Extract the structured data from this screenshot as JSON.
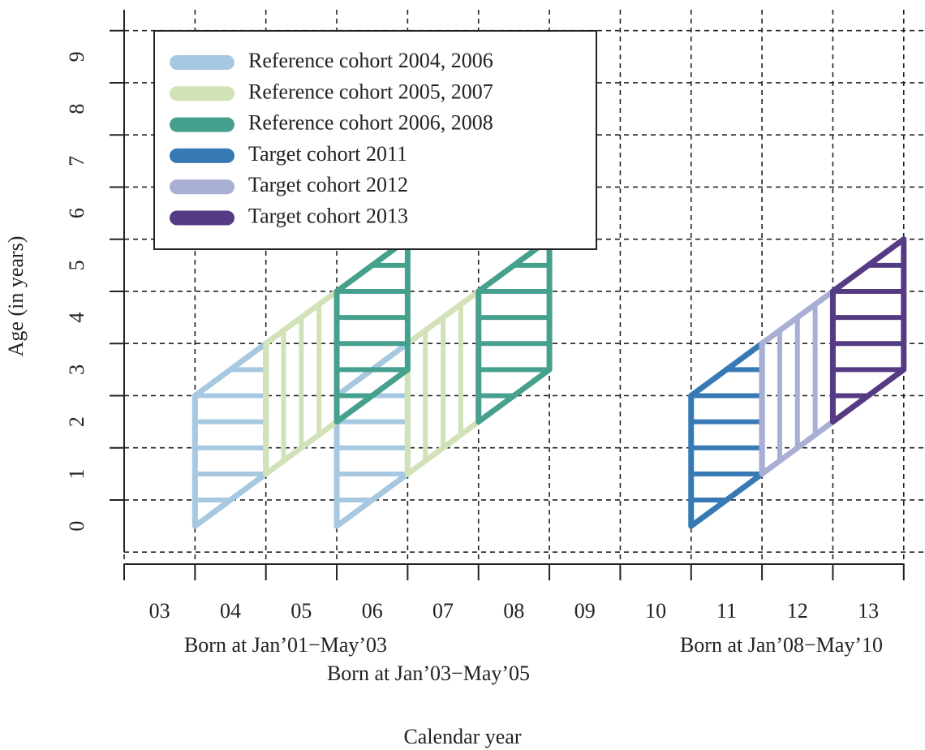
{
  "chart_data": {
    "type": "lexis",
    "x_label": "Calendar year",
    "y_label": "Age (in years)",
    "xlim": [
      2003,
      2014.3
    ],
    "ylim": [
      -0.23,
      10.4
    ],
    "xticks": [
      {
        "value": 2003.5,
        "label": "03"
      },
      {
        "value": 2004.5,
        "label": "04"
      },
      {
        "value": 2005.5,
        "label": "05"
      },
      {
        "value": 2006.5,
        "label": "06"
      },
      {
        "value": 2007.5,
        "label": "07"
      },
      {
        "value": 2008.5,
        "label": "08"
      },
      {
        "value": 2009.5,
        "label": "09"
      },
      {
        "value": 2010.5,
        "label": "10"
      },
      {
        "value": 2011.5,
        "label": "11"
      },
      {
        "value": 2012.5,
        "label": "12"
      },
      {
        "value": 2013.5,
        "label": "13"
      }
    ],
    "xgrid": [
      2003,
      2004,
      2005,
      2006,
      2007,
      2008,
      2009,
      2010,
      2011,
      2012,
      2013,
      2014
    ],
    "yticks": [
      {
        "value": 0.5,
        "label": "0"
      },
      {
        "value": 1.5,
        "label": "1"
      },
      {
        "value": 2.5,
        "label": "2"
      },
      {
        "value": 3.5,
        "label": "3"
      },
      {
        "value": 4.5,
        "label": "4"
      },
      {
        "value": 5.5,
        "label": "5"
      },
      {
        "value": 6.5,
        "label": "6"
      },
      {
        "value": 7.5,
        "label": "7"
      },
      {
        "value": 8.5,
        "label": "8"
      },
      {
        "value": 9.5,
        "label": "9"
      }
    ],
    "ygrid": [
      0,
      1,
      2,
      3,
      4,
      5,
      6,
      7,
      8,
      9,
      10
    ],
    "grid": true,
    "legend": "top-left",
    "series": [
      {
        "name": "Reference cohort 2004, 2006",
        "color": "#a6c8e0",
        "hatch": "horizontal",
        "shapes": [
          {
            "x": [
              2004,
              2005
            ],
            "low": [
              0.5,
              1.5
            ],
            "high": [
              3,
              4
            ]
          },
          {
            "x": [
              2006,
              2007
            ],
            "low": [
              0.5,
              1.5
            ],
            "high": [
              3,
              4
            ]
          }
        ]
      },
      {
        "name": "Reference cohort 2005, 2007",
        "color": "#d2e2b8",
        "hatch": "vertical",
        "shapes": [
          {
            "x": [
              2005,
              2006
            ],
            "low": [
              1.5,
              2.5
            ],
            "high": [
              4,
              5
            ]
          },
          {
            "x": [
              2007,
              2008
            ],
            "low": [
              1.5,
              2.5
            ],
            "high": [
              4,
              5
            ]
          }
        ]
      },
      {
        "name": "Reference cohort 2006, 2008",
        "color": "#46a08e",
        "hatch": "horizontal",
        "shapes": [
          {
            "x": [
              2006,
              2007
            ],
            "low": [
              2.5,
              3.5
            ],
            "high": [
              5,
              6
            ]
          },
          {
            "x": [
              2008,
              2009
            ],
            "low": [
              2.5,
              3.5
            ],
            "high": [
              5,
              6
            ]
          }
        ]
      },
      {
        "name": "Target cohort 2011",
        "color": "#3679b4",
        "hatch": "horizontal",
        "shapes": [
          {
            "x": [
              2011,
              2012
            ],
            "low": [
              0.5,
              1.5
            ],
            "high": [
              3,
              4
            ]
          }
        ]
      },
      {
        "name": "Target cohort 2012",
        "color": "#a9afd4",
        "hatch": "vertical",
        "shapes": [
          {
            "x": [
              2012,
              2013
            ],
            "low": [
              1.5,
              2.5
            ],
            "high": [
              4,
              5
            ]
          }
        ]
      },
      {
        "name": "Target cohort 2013",
        "color": "#553a84",
        "hatch": "horizontal",
        "shapes": [
          {
            "x": [
              2013,
              2014
            ],
            "low": [
              2.5,
              3.5
            ],
            "high": [
              5,
              6
            ]
          }
        ]
      }
    ],
    "annotations": [
      "Born at Jan’01−May’03",
      "Born at Jan’03−May’05",
      "Born at Jan’08−May’10"
    ]
  }
}
